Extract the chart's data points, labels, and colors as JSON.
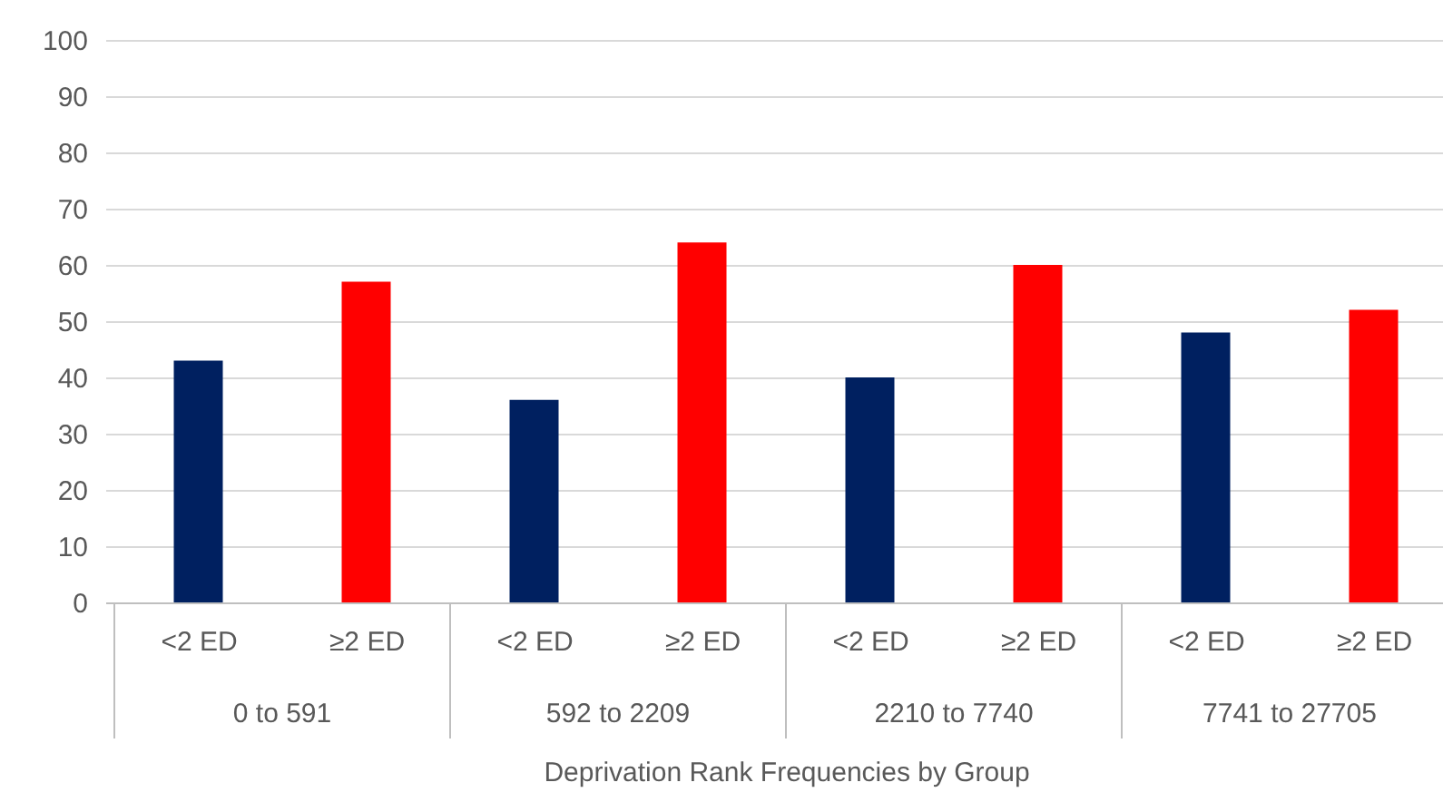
{
  "chart_data": {
    "type": "bar",
    "xlabel": "Deprivation Rank Frequencies by Group",
    "categories": [
      "<2  ED",
      "≥2 ED",
      "<2  ED",
      "≥2 ED",
      "<2  ED",
      "≥2 ED",
      "<2  ED",
      "≥2 ED"
    ],
    "values": [
      43,
      57,
      36,
      64,
      40,
      60,
      48,
      52
    ],
    "colors": [
      "#002060",
      "#ff0000",
      "#002060",
      "#ff0000",
      "#002060",
      "#ff0000",
      "#002060",
      "#ff0000"
    ],
    "annotations": [
      "0 to 591",
      "592 to 2209",
      "2210 to 7740",
      "7741 to 27705"
    ],
    "ylim": [
      0,
      100
    ],
    "yticks": [
      0,
      10,
      20,
      30,
      40,
      50,
      60,
      70,
      80,
      90,
      100
    ],
    "grid": "y"
  }
}
